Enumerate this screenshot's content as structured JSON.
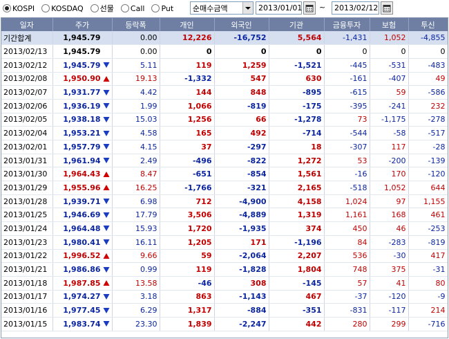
{
  "toolbar": {
    "markets": [
      {
        "label": "KOSPI",
        "selected": true
      },
      {
        "label": "KOSDAQ",
        "selected": false
      },
      {
        "label": "선물",
        "selected": false
      },
      {
        "label": "Call",
        "selected": false
      },
      {
        "label": "Put",
        "selected": false
      }
    ],
    "metric_select": "순매수금액",
    "start_date": "2013/01/01",
    "separator": "~",
    "end_date": "2013/02/12"
  },
  "table": {
    "columns": [
      "일자",
      "주가",
      "등락폭",
      "개인",
      "외국인",
      "기관",
      "금융투자",
      "보험",
      "투신"
    ],
    "rows": [
      {
        "date": "기간합계",
        "price": "1,945.79",
        "dir": "none",
        "change": "0.00",
        "individual": "12,226",
        "foreign": "-16,752",
        "institution": "5,564",
        "finance": "-1,431",
        "insurance": "1,052",
        "trust": "-4,855",
        "summary": true
      },
      {
        "date": "2013/02/13",
        "price": "1,945.79",
        "dir": "none",
        "change": "0.00",
        "individual": "0",
        "foreign": "0",
        "institution": "0",
        "finance": "0",
        "insurance": "0",
        "trust": "0"
      },
      {
        "date": "2013/02/12",
        "price": "1,945.79",
        "dir": "down",
        "change": "5.11",
        "individual": "119",
        "foreign": "1,259",
        "institution": "-1,521",
        "finance": "-445",
        "insurance": "-531",
        "trust": "-483"
      },
      {
        "date": "2013/02/08",
        "price": "1,950.90",
        "dir": "up",
        "change": "19.13",
        "individual": "-1,332",
        "foreign": "547",
        "institution": "630",
        "finance": "-161",
        "insurance": "-407",
        "trust": "49"
      },
      {
        "date": "2013/02/07",
        "price": "1,931.77",
        "dir": "down",
        "change": "4.42",
        "individual": "144",
        "foreign": "848",
        "institution": "-895",
        "finance": "-615",
        "insurance": "59",
        "trust": "-586"
      },
      {
        "date": "2013/02/06",
        "price": "1,936.19",
        "dir": "down",
        "change": "1.99",
        "individual": "1,066",
        "foreign": "-819",
        "institution": "-175",
        "finance": "-395",
        "insurance": "-241",
        "trust": "232"
      },
      {
        "date": "2013/02/05",
        "price": "1,938.18",
        "dir": "down",
        "change": "15.03",
        "individual": "1,256",
        "foreign": "66",
        "institution": "-1,278",
        "finance": "73",
        "insurance": "-1,175",
        "trust": "-278"
      },
      {
        "date": "2013/02/04",
        "price": "1,953.21",
        "dir": "down",
        "change": "4.58",
        "individual": "165",
        "foreign": "492",
        "institution": "-714",
        "finance": "-544",
        "insurance": "-58",
        "trust": "-517"
      },
      {
        "date": "2013/02/01",
        "price": "1,957.79",
        "dir": "down",
        "change": "4.15",
        "individual": "37",
        "foreign": "-297",
        "institution": "18",
        "finance": "-307",
        "insurance": "117",
        "trust": "-28"
      },
      {
        "date": "2013/01/31",
        "price": "1,961.94",
        "dir": "down",
        "change": "2.49",
        "individual": "-496",
        "foreign": "-822",
        "institution": "1,272",
        "finance": "53",
        "insurance": "-200",
        "trust": "-139"
      },
      {
        "date": "2013/01/30",
        "price": "1,964.43",
        "dir": "up",
        "change": "8.47",
        "individual": "-651",
        "foreign": "-854",
        "institution": "1,561",
        "finance": "-16",
        "insurance": "170",
        "trust": "-120"
      },
      {
        "date": "2013/01/29",
        "price": "1,955.96",
        "dir": "up",
        "change": "16.25",
        "individual": "-1,766",
        "foreign": "-321",
        "institution": "2,165",
        "finance": "-518",
        "insurance": "1,052",
        "trust": "644"
      },
      {
        "date": "2013/01/28",
        "price": "1,939.71",
        "dir": "down",
        "change": "6.98",
        "individual": "712",
        "foreign": "-4,900",
        "institution": "4,158",
        "finance": "1,024",
        "insurance": "97",
        "trust": "1,155"
      },
      {
        "date": "2013/01/25",
        "price": "1,946.69",
        "dir": "down",
        "change": "17.79",
        "individual": "3,506",
        "foreign": "-4,889",
        "institution": "1,319",
        "finance": "1,161",
        "insurance": "168",
        "trust": "461"
      },
      {
        "date": "2013/01/24",
        "price": "1,964.48",
        "dir": "down",
        "change": "15.93",
        "individual": "1,720",
        "foreign": "-1,935",
        "institution": "374",
        "finance": "450",
        "insurance": "46",
        "trust": "-253"
      },
      {
        "date": "2013/01/23",
        "price": "1,980.41",
        "dir": "down",
        "change": "16.11",
        "individual": "1,205",
        "foreign": "171",
        "institution": "-1,196",
        "finance": "84",
        "insurance": "-283",
        "trust": "-819"
      },
      {
        "date": "2013/01/22",
        "price": "1,996.52",
        "dir": "up",
        "change": "9.66",
        "individual": "59",
        "foreign": "-2,064",
        "institution": "2,207",
        "finance": "536",
        "insurance": "-30",
        "trust": "417"
      },
      {
        "date": "2013/01/21",
        "price": "1,986.86",
        "dir": "down",
        "change": "0.99",
        "individual": "119",
        "foreign": "-1,828",
        "institution": "1,804",
        "finance": "748",
        "insurance": "375",
        "trust": "-31"
      },
      {
        "date": "2013/01/18",
        "price": "1,987.85",
        "dir": "up",
        "change": "13.58",
        "individual": "-46",
        "foreign": "308",
        "institution": "-145",
        "finance": "57",
        "insurance": "41",
        "trust": "80"
      },
      {
        "date": "2013/01/17",
        "price": "1,974.27",
        "dir": "down",
        "change": "3.18",
        "individual": "863",
        "foreign": "-1,143",
        "institution": "467",
        "finance": "-37",
        "insurance": "-120",
        "trust": "-9"
      },
      {
        "date": "2013/01/16",
        "price": "1,977.45",
        "dir": "down",
        "change": "6.29",
        "individual": "1,317",
        "foreign": "-884",
        "institution": "-351",
        "finance": "-831",
        "insurance": "-117",
        "trust": "214"
      },
      {
        "date": "2013/01/15",
        "price": "1,983.74",
        "dir": "down",
        "change": "23.30",
        "individual": "1,839",
        "foreign": "-2,247",
        "institution": "442",
        "finance": "280",
        "insurance": "299",
        "trust": "-716"
      }
    ]
  },
  "colors": {
    "up": "#c00000",
    "down": "#0a24a0",
    "header_bg": "#6e7fa3",
    "summary_bg": "#d5dff0"
  },
  "icons": {
    "up": "triangle-up-icon",
    "down": "triangle-down-icon",
    "calendar": "calendar-icon"
  }
}
